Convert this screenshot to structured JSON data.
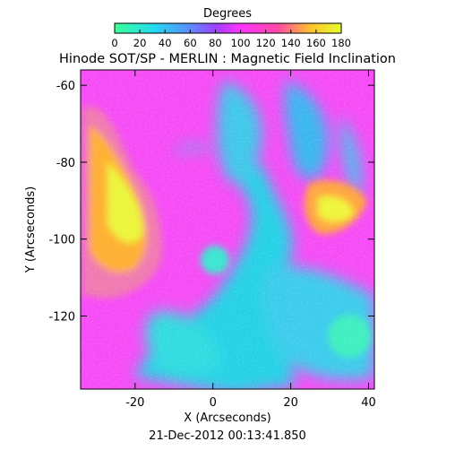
{
  "chart_data": {
    "type": "heatmap",
    "title": "Hinode SOT/SP - MERLIN : Magnetic Field Inclination",
    "xlabel": "X (Arcseconds)",
    "ylabel": "Y (Arcseconds)",
    "timestamp": "21-Dec-2012 00:13:41.850",
    "xlim": [
      -34,
      41.5
    ],
    "ylim": [
      -139,
      -56
    ],
    "x_ticks": [
      -20,
      0,
      20,
      40
    ],
    "y_ticks": [
      -60,
      -80,
      -100,
      -120
    ],
    "colorbar": {
      "title": "Degrees",
      "range": [
        0,
        180
      ],
      "ticks": [
        0,
        20,
        40,
        60,
        80,
        100,
        120,
        140,
        160,
        180
      ]
    },
    "regions": [
      {
        "label": "yellow/orange patch (~150-180 deg)",
        "x": -27,
        "y": -98,
        "value": 160
      },
      {
        "label": "yellow/orange patch (~150-180 deg)",
        "x": 33,
        "y": -96,
        "value": 165
      },
      {
        "label": "cyan/green region (~20-60 deg)",
        "x": 5,
        "y": -120,
        "value": 40
      },
      {
        "label": "cyan/green sunspot (~20-40 deg)",
        "x": 38,
        "y": -126,
        "value": 30
      }
    ]
  }
}
